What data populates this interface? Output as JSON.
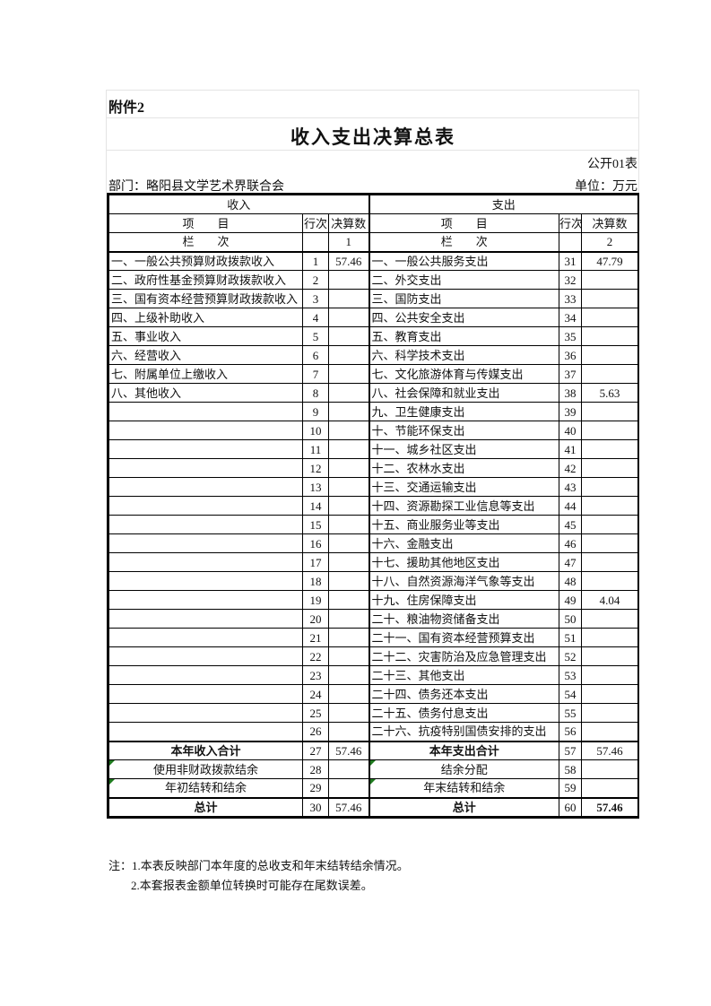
{
  "colors": {
    "border": "#000000",
    "faint_gridline": "#e4e4e4",
    "green_indicator": "#1e7b1e"
  },
  "page": {
    "attachment": "附件2",
    "title": "收入支出决算总表",
    "table_code": "公开01表",
    "department": "部门：略阳县文学艺术界联合会",
    "unit": "单位：万元",
    "note1": "注：1.本表反映部门本年度的总收支和年末结转结余情况。",
    "note2": "2.本套报表金额单位转换时可能存在尾数误差。"
  },
  "table": {
    "income_section": "收入",
    "expense_section": "支出",
    "col_item": "项　　目",
    "col_rowno": "行次",
    "col_amount": "决算数",
    "index_label": "栏　　次",
    "income_index": "1",
    "expense_index": "2",
    "detail_rows": [
      {
        "li": "一、一般公共预算财政拨款收入",
        "lr": "1",
        "lv": "57.46",
        "ri": "一、一般公共服务支出",
        "rr": "31",
        "rv": "47.79"
      },
      {
        "li": "二、政府性基金预算财政拨款收入",
        "lr": "2",
        "lv": "",
        "ri": "二、外交支出",
        "rr": "32",
        "rv": ""
      },
      {
        "li": "三、国有资本经营预算财政拨款收入",
        "lr": "3",
        "lv": "",
        "ri": "三、国防支出",
        "rr": "33",
        "rv": ""
      },
      {
        "li": "四、上级补助收入",
        "lr": "4",
        "lv": "",
        "ri": "四、公共安全支出",
        "rr": "34",
        "rv": ""
      },
      {
        "li": "五、事业收入",
        "lr": "5",
        "lv": "",
        "ri": "五、教育支出",
        "rr": "35",
        "rv": ""
      },
      {
        "li": "六、经营收入",
        "lr": "6",
        "lv": "",
        "ri": "六、科学技术支出",
        "rr": "36",
        "rv": ""
      },
      {
        "li": "七、附属单位上缴收入",
        "lr": "7",
        "lv": "",
        "ri": "七、文化旅游体育与传媒支出",
        "rr": "37",
        "rv": ""
      },
      {
        "li": "八、其他收入",
        "lr": "8",
        "lv": "",
        "ri": "八、社会保障和就业支出",
        "rr": "38",
        "rv": "5.63"
      },
      {
        "li": "",
        "lr": "9",
        "lv": "",
        "ri": "九、卫生健康支出",
        "rr": "39",
        "rv": ""
      },
      {
        "li": "",
        "lr": "10",
        "lv": "",
        "ri": "十、节能环保支出",
        "rr": "40",
        "rv": ""
      },
      {
        "li": "",
        "lr": "11",
        "lv": "",
        "ri": "十一、城乡社区支出",
        "rr": "41",
        "rv": ""
      },
      {
        "li": "",
        "lr": "12",
        "lv": "",
        "ri": "十二、农林水支出",
        "rr": "42",
        "rv": ""
      },
      {
        "li": "",
        "lr": "13",
        "lv": "",
        "ri": "十三、交通运输支出",
        "rr": "43",
        "rv": ""
      },
      {
        "li": "",
        "lr": "14",
        "lv": "",
        "ri": "十四、资源勘探工业信息等支出",
        "rr": "44",
        "rv": ""
      },
      {
        "li": "",
        "lr": "15",
        "lv": "",
        "ri": "十五、商业服务业等支出",
        "rr": "45",
        "rv": ""
      },
      {
        "li": "",
        "lr": "16",
        "lv": "",
        "ri": "十六、金融支出",
        "rr": "46",
        "rv": ""
      },
      {
        "li": "",
        "lr": "17",
        "lv": "",
        "ri": "十七、援助其他地区支出",
        "rr": "47",
        "rv": ""
      },
      {
        "li": "",
        "lr": "18",
        "lv": "",
        "ri": "十八、自然资源海洋气象等支出",
        "rr": "48",
        "rv": ""
      },
      {
        "li": "",
        "lr": "19",
        "lv": "",
        "ri": "十九、住房保障支出",
        "rr": "49",
        "rv": "4.04"
      },
      {
        "li": "",
        "lr": "20",
        "lv": "",
        "ri": "二十、粮油物资储备支出",
        "rr": "50",
        "rv": ""
      },
      {
        "li": "",
        "lr": "21",
        "lv": "",
        "ri": "二十一、国有资本经营预算支出",
        "rr": "51",
        "rv": ""
      },
      {
        "li": "",
        "lr": "22",
        "lv": "",
        "ri": "二十二、灾害防治及应急管理支出",
        "rr": "52",
        "rv": ""
      },
      {
        "li": "",
        "lr": "23",
        "lv": "",
        "ri": "二十三、其他支出",
        "rr": "53",
        "rv": ""
      },
      {
        "li": "",
        "lr": "24",
        "lv": "",
        "ri": "二十四、债务还本支出",
        "rr": "54",
        "rv": ""
      },
      {
        "li": "",
        "lr": "25",
        "lv": "",
        "ri": "二十五、债务付息支出",
        "rr": "55",
        "rv": ""
      },
      {
        "li": "",
        "lr": "26",
        "lv": "",
        "ri": "二十六、抗疫特别国债安排的支出",
        "rr": "56",
        "rv": ""
      }
    ],
    "summary_rows": [
      {
        "li": "本年收入合计",
        "lr": "27",
        "lv": "57.46",
        "ri": "本年支出合计",
        "rr": "57",
        "rv": "57.46",
        "bold_labels": true,
        "thick_top": true,
        "green": false,
        "bold_right_value": false
      },
      {
        "li": "使用非财政拨款结余",
        "lr": "28",
        "lv": "",
        "ri": "结余分配",
        "rr": "58",
        "rv": "",
        "bold_labels": false,
        "thick_top": false,
        "green": true,
        "bold_right_value": false
      },
      {
        "li": "年初结转和结余",
        "lr": "29",
        "lv": "",
        "ri": "年末结转和结余",
        "rr": "59",
        "rv": "",
        "bold_labels": false,
        "thick_top": false,
        "green": true,
        "bold_right_value": false
      },
      {
        "li": "总计",
        "lr": "30",
        "lv": "57.46",
        "ri": "总计",
        "rr": "60",
        "rv": "57.46",
        "bold_labels": true,
        "thick_top": true,
        "green": false,
        "bold_right_value": true
      }
    ]
  }
}
